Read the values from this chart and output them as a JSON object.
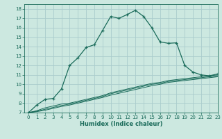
{
  "xlabel": "Humidex (Indice chaleur)",
  "ylabel": "",
  "bg_color": "#cce8e0",
  "grid_color": "#aacccc",
  "line_color": "#1a6b5a",
  "xlim": [
    -0.5,
    23
  ],
  "ylim": [
    7,
    18.5
  ],
  "xticks": [
    0,
    1,
    2,
    3,
    4,
    5,
    6,
    7,
    8,
    9,
    10,
    11,
    12,
    13,
    14,
    15,
    16,
    17,
    18,
    19,
    20,
    21,
    22,
    23
  ],
  "yticks": [
    7,
    8,
    9,
    10,
    11,
    12,
    13,
    14,
    15,
    16,
    17,
    18
  ],
  "main_x": [
    0,
    1,
    2,
    3,
    4,
    5,
    6,
    7,
    8,
    9,
    10,
    11,
    12,
    13,
    14,
    15,
    16,
    17,
    18,
    19,
    20,
    21,
    22,
    23
  ],
  "main_y": [
    7.0,
    7.8,
    8.4,
    8.5,
    9.5,
    12.0,
    12.8,
    13.9,
    14.2,
    15.7,
    17.2,
    17.0,
    17.4,
    17.85,
    17.2,
    16.0,
    14.5,
    14.35,
    14.4,
    12.0,
    11.3,
    11.0,
    10.9,
    11.1
  ],
  "l3y": [
    7.0,
    7.2,
    7.5,
    7.7,
    7.9,
    8.0,
    8.2,
    8.4,
    8.6,
    8.8,
    9.1,
    9.3,
    9.5,
    9.7,
    9.9,
    10.1,
    10.2,
    10.4,
    10.5,
    10.6,
    10.7,
    10.8,
    10.9,
    11.0
  ],
  "l4y": [
    7.0,
    7.15,
    7.35,
    7.55,
    7.75,
    7.9,
    8.1,
    8.3,
    8.5,
    8.7,
    9.0,
    9.2,
    9.4,
    9.6,
    9.8,
    10.0,
    10.1,
    10.3,
    10.4,
    10.5,
    10.6,
    10.7,
    10.8,
    10.9
  ],
  "l5y": [
    7.0,
    7.1,
    7.25,
    7.45,
    7.65,
    7.8,
    8.0,
    8.2,
    8.4,
    8.6,
    8.85,
    9.05,
    9.25,
    9.45,
    9.65,
    9.85,
    10.0,
    10.2,
    10.3,
    10.4,
    10.5,
    10.6,
    10.7,
    10.8
  ]
}
